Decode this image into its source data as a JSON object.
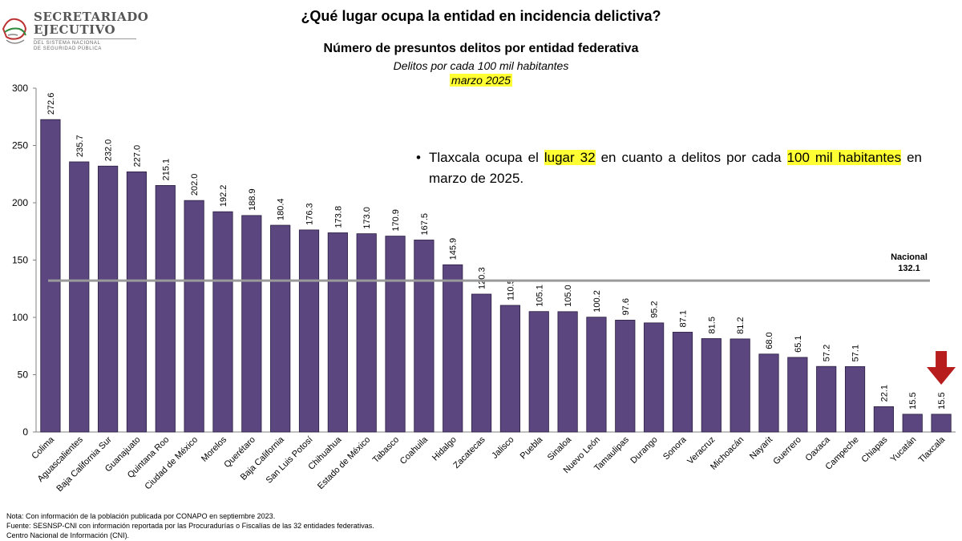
{
  "logo": {
    "line1": "SECRETARIADO",
    "line2": "EJECUTIVO",
    "line3": "DEL SISTEMA NACIONAL",
    "line4": "DE SEGURIDAD PÚBLICA"
  },
  "header": {
    "title": "¿Qué lugar ocupa la entidad en incidencia delictiva?",
    "subtitle": "Número de presuntos delitos por entidad federativa",
    "unit": "Delitos por cada 100 mil habitantes",
    "period": "marzo 2025"
  },
  "callout": {
    "bullet": "•",
    "part1": "Tlaxcala ocupa el ",
    "hl1": "lugar 32",
    "part2": " en cuanto a delitos por cada ",
    "hl2": "100 mil habitantes",
    "part3": " en marzo de 2025."
  },
  "notes": {
    "line1": "Nota: Con información de la población publicada por CONAPO en septiembre 2023.",
    "line2": "Fuente: SESNSP-CNI con información reportada por las Procuradurías o Fiscalías de las 32 entidades federativas.",
    "line3": "Centro Nacional de Información (CNI)."
  },
  "chart_data": {
    "type": "bar",
    "categories": [
      "Colima",
      "Aguascalientes",
      "Baja California Sur",
      "Guanajuato",
      "Quintana Roo",
      "Ciudad de México",
      "Morelos",
      "Querétaro",
      "Baja California",
      "San Luis Potosí",
      "Chihuahua",
      "Estado de México",
      "Tabasco",
      "Coahuila",
      "Hidalgo",
      "Zacatecas",
      "Jalisco",
      "Puebla",
      "Sinaloa",
      "Nuevo León",
      "Tamaulipas",
      "Durango",
      "Sonora",
      "Veracruz",
      "Michoacán",
      "Nayarit",
      "Guerrero",
      "Oaxaca",
      "Campeche",
      "Chiapas",
      "Yucatán",
      "Tlaxcala"
    ],
    "values": [
      272.6,
      235.7,
      232.0,
      227.0,
      215.1,
      202.0,
      192.2,
      188.9,
      180.4,
      176.3,
      173.8,
      173.0,
      170.9,
      167.5,
      145.9,
      120.3,
      110.5,
      105.1,
      105.0,
      100.2,
      97.6,
      95.2,
      87.1,
      81.5,
      81.2,
      68.0,
      65.1,
      57.2,
      57.1,
      22.1,
      15.5,
      15.5
    ],
    "value_labels": [
      "272.6",
      "235.7",
      "232.0",
      "227.0",
      "215.1",
      "202.0",
      "192.2",
      "188.9",
      "180.4",
      "176.3",
      "173.8",
      "173.0",
      "170.9",
      "167.5",
      "145.9",
      "120.3",
      "110.5",
      "105.1",
      "105.0",
      "100.2",
      "97.6",
      "95.2",
      "87.1",
      "81.5",
      "81.2",
      "68.0",
      "65.1",
      "57.2",
      "57.1",
      "22.1",
      "15.5",
      "15.5"
    ],
    "yticks": [
      "0",
      "50",
      "100",
      "150",
      "200",
      "250",
      "300"
    ],
    "ylim": [
      0,
      300
    ],
    "grid": false,
    "reference_line": {
      "label": "Nacional",
      "value": 132.1,
      "value_label": "132.1",
      "color": "#9a9a9a"
    },
    "highlight": {
      "category": "Tlaxcala",
      "marker": "arrow-down",
      "color": "#b81d1d"
    },
    "bar_color": "#5b4680",
    "bar_edge_color": "#2a1d40"
  }
}
